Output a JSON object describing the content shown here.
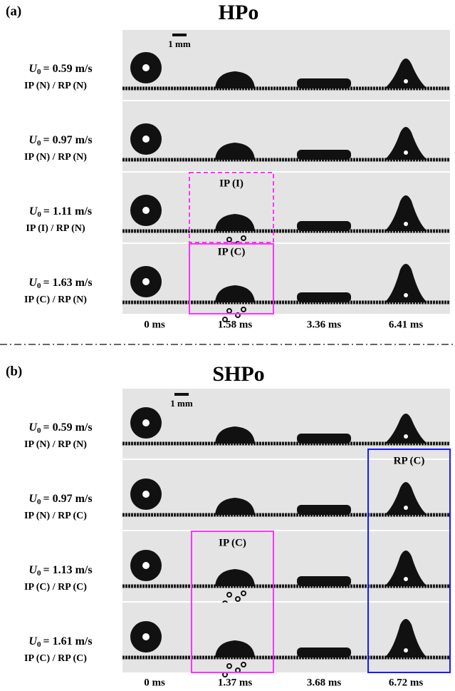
{
  "panels": [
    {
      "label": "(a)",
      "title": "HPo",
      "scale_bar": "1 mm",
      "rows": [
        {
          "symbol": "U",
          "subscript": "0",
          "speed": "= 0.59 m/s",
          "regime": "IP (N) / RP (N)"
        },
        {
          "symbol": "U",
          "subscript": "0",
          "speed": "= 0.97 m/s",
          "regime": "IP (N) / RP (N)"
        },
        {
          "symbol": "U",
          "subscript": "0",
          "speed": "= 1.11 m/s",
          "regime": "IP (I) / RP (N)"
        },
        {
          "symbol": "U",
          "subscript": "0",
          "speed": "= 1.63 m/s",
          "regime": "IP (C) / RP (N)"
        }
      ],
      "times": [
        "0 ms",
        "1.58 ms",
        "3.36 ms",
        "6.41 ms"
      ],
      "annotations": [
        "IP (I)",
        "IP (C)"
      ]
    },
    {
      "label": "(b)",
      "title": "SHPo",
      "scale_bar": "1 mm",
      "rows": [
        {
          "symbol": "U",
          "subscript": "0",
          "speed": "= 0.59 m/s",
          "regime": "IP (N) / RP (N)"
        },
        {
          "symbol": "U",
          "subscript": "0",
          "speed": "= 0.97 m/s",
          "regime": "IP (N) / RP (C)"
        },
        {
          "symbol": "U",
          "subscript": "0",
          "speed": "= 1.13 m/s",
          "regime": "IP (C) / RP (C)"
        },
        {
          "symbol": "U",
          "subscript": "0",
          "speed": "= 1.61 m/s",
          "regime": "IP (C) / RP (C)"
        }
      ],
      "times": [
        "0 ms",
        "1.37 ms",
        "3.68 ms",
        "6.72 ms"
      ],
      "annotations": [
        "IP (C)",
        "RP (C)"
      ]
    }
  ]
}
